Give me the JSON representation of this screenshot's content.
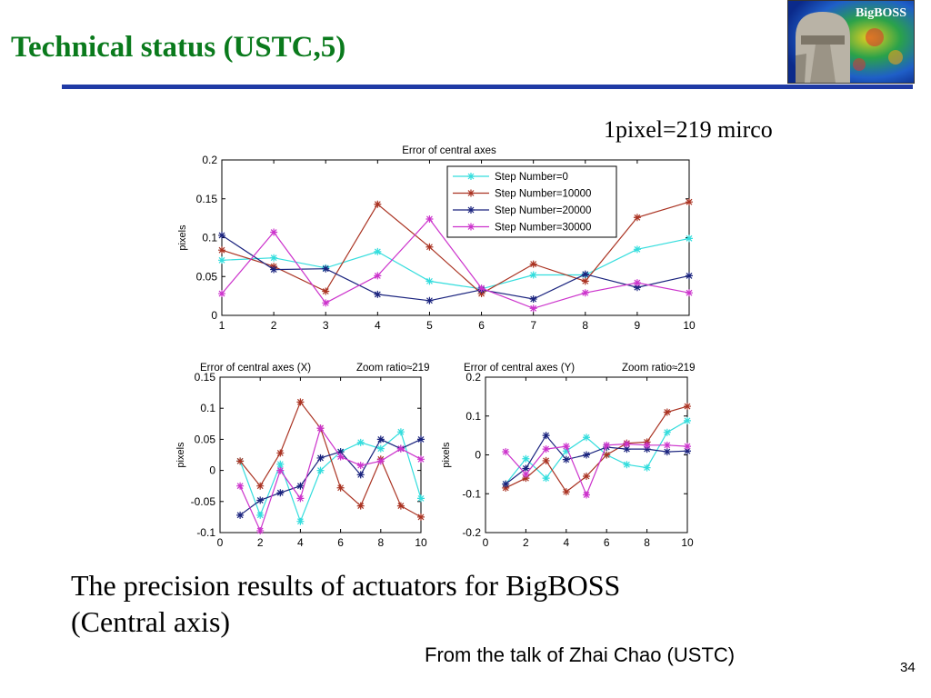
{
  "slide": {
    "title": "Technical status (USTC,5)",
    "pixel_note": "1pixel=219 mirco",
    "caption_line1": "The precision results of actuators for BigBOSS",
    "caption_line2": "(Central axis)",
    "credit": "From the talk of Zhai Chao (USTC)",
    "page_number": "34",
    "logo_text": "BigBOSS",
    "accent_color": "#0a7a1c",
    "rule_color": "#1f3aa5"
  },
  "chart_data": [
    {
      "type": "line",
      "title": "Error of central axes",
      "title_right": "",
      "xlabel": "",
      "ylabel": "pixels",
      "xlim": [
        1,
        10
      ],
      "ylim": [
        0,
        0.2
      ],
      "xticks": [
        1,
        2,
        3,
        4,
        5,
        6,
        7,
        8,
        9,
        10
      ],
      "yticks": [
        0,
        0.05,
        0.1,
        0.15,
        0.2
      ],
      "legend": "top-right",
      "series": [
        {
          "name": "Step Number=0",
          "color": "#33dddd",
          "x": [
            1,
            2,
            3,
            4,
            5,
            6,
            7,
            8,
            9,
            10
          ],
          "values": [
            0.071,
            0.074,
            0.061,
            0.082,
            0.044,
            0.034,
            0.052,
            0.052,
            0.085,
            0.099
          ]
        },
        {
          "name": "Step Number=10000",
          "color": "#aa3322",
          "x": [
            1,
            2,
            3,
            4,
            5,
            6,
            7,
            8,
            9,
            10
          ],
          "values": [
            0.084,
            0.063,
            0.031,
            0.143,
            0.088,
            0.028,
            0.066,
            0.044,
            0.126,
            0.146
          ]
        },
        {
          "name": "Step Number=20000",
          "color": "#1a237e",
          "x": [
            1,
            2,
            3,
            4,
            5,
            6,
            7,
            8,
            9,
            10
          ],
          "values": [
            0.103,
            0.059,
            0.06,
            0.027,
            0.019,
            0.033,
            0.021,
            0.053,
            0.036,
            0.051
          ]
        },
        {
          "name": "Step Number=30000",
          "color": "#cc33cc",
          "x": [
            1,
            2,
            3,
            4,
            5,
            6,
            7,
            8,
            9,
            10
          ],
          "values": [
            0.028,
            0.107,
            0.016,
            0.051,
            0.124,
            0.035,
            0.009,
            0.029,
            0.042,
            0.029
          ]
        }
      ]
    },
    {
      "type": "line",
      "title": "Error of central axes (X)",
      "title_right": "Zoom ratio≈219",
      "xlabel": "",
      "ylabel": "pixels",
      "xlim": [
        0,
        10
      ],
      "ylim": [
        -0.1,
        0.15
      ],
      "xticks": [
        0,
        2,
        4,
        6,
        8,
        10
      ],
      "yticks": [
        -0.1,
        -0.05,
        0,
        0.05,
        0.1,
        0.15
      ],
      "series": [
        {
          "name": "",
          "color": "#33dddd",
          "x": [
            1,
            2,
            3,
            4,
            5,
            6,
            7,
            8,
            9,
            10
          ],
          "values": [
            0.015,
            -0.072,
            0.01,
            -0.082,
            0.0,
            0.03,
            0.045,
            0.035,
            0.062,
            -0.045
          ]
        },
        {
          "name": "",
          "color": "#aa3322",
          "x": [
            1,
            2,
            3,
            4,
            5,
            6,
            7,
            8,
            9,
            10
          ],
          "values": [
            0.015,
            -0.025,
            0.028,
            0.11,
            0.068,
            -0.028,
            -0.057,
            0.018,
            -0.057,
            -0.075
          ]
        },
        {
          "name": "",
          "color": "#1a237e",
          "x": [
            1,
            2,
            3,
            4,
            5,
            6,
            7,
            8,
            9,
            10
          ],
          "values": [
            -0.072,
            -0.048,
            -0.036,
            -0.025,
            0.02,
            0.03,
            -0.007,
            0.05,
            0.035,
            0.05
          ]
        },
        {
          "name": "",
          "color": "#cc33cc",
          "x": [
            1,
            2,
            3,
            4,
            5,
            6,
            7,
            8,
            9,
            10
          ],
          "values": [
            -0.025,
            -0.097,
            0.0,
            -0.045,
            0.068,
            0.022,
            0.008,
            0.015,
            0.035,
            0.018
          ]
        }
      ]
    },
    {
      "type": "line",
      "title": "Error of central axes (Y)",
      "title_right": "Zoom ratio≈219",
      "xlabel": "",
      "ylabel": "pixels",
      "xlim": [
        0,
        10
      ],
      "ylim": [
        -0.2,
        0.2
      ],
      "xticks": [
        0,
        2,
        4,
        6,
        8,
        10
      ],
      "yticks": [
        -0.2,
        -0.1,
        0,
        0.1,
        0.2
      ],
      "series": [
        {
          "name": "",
          "color": "#33dddd",
          "x": [
            1,
            2,
            3,
            4,
            5,
            6,
            7,
            8,
            9,
            10
          ],
          "values": [
            -0.075,
            -0.01,
            -0.06,
            0.01,
            0.045,
            0.0,
            -0.025,
            -0.033,
            0.058,
            0.088
          ]
        },
        {
          "name": "",
          "color": "#aa3322",
          "x": [
            1,
            2,
            3,
            4,
            5,
            6,
            7,
            8,
            9,
            10
          ],
          "values": [
            -0.085,
            -0.06,
            -0.015,
            -0.095,
            -0.055,
            0.0,
            0.03,
            0.033,
            0.11,
            0.125
          ]
        },
        {
          "name": "",
          "color": "#1a237e",
          "x": [
            1,
            2,
            3,
            4,
            5,
            6,
            7,
            8,
            9,
            10
          ],
          "values": [
            -0.075,
            -0.035,
            0.05,
            -0.012,
            0.0,
            0.02,
            0.015,
            0.015,
            0.008,
            0.01
          ]
        },
        {
          "name": "",
          "color": "#cc33cc",
          "x": [
            1,
            2,
            3,
            4,
            5,
            6,
            7,
            8,
            9,
            10
          ],
          "values": [
            0.008,
            -0.05,
            0.015,
            0.022,
            -0.103,
            0.025,
            0.028,
            0.025,
            0.025,
            0.022
          ]
        }
      ]
    }
  ]
}
